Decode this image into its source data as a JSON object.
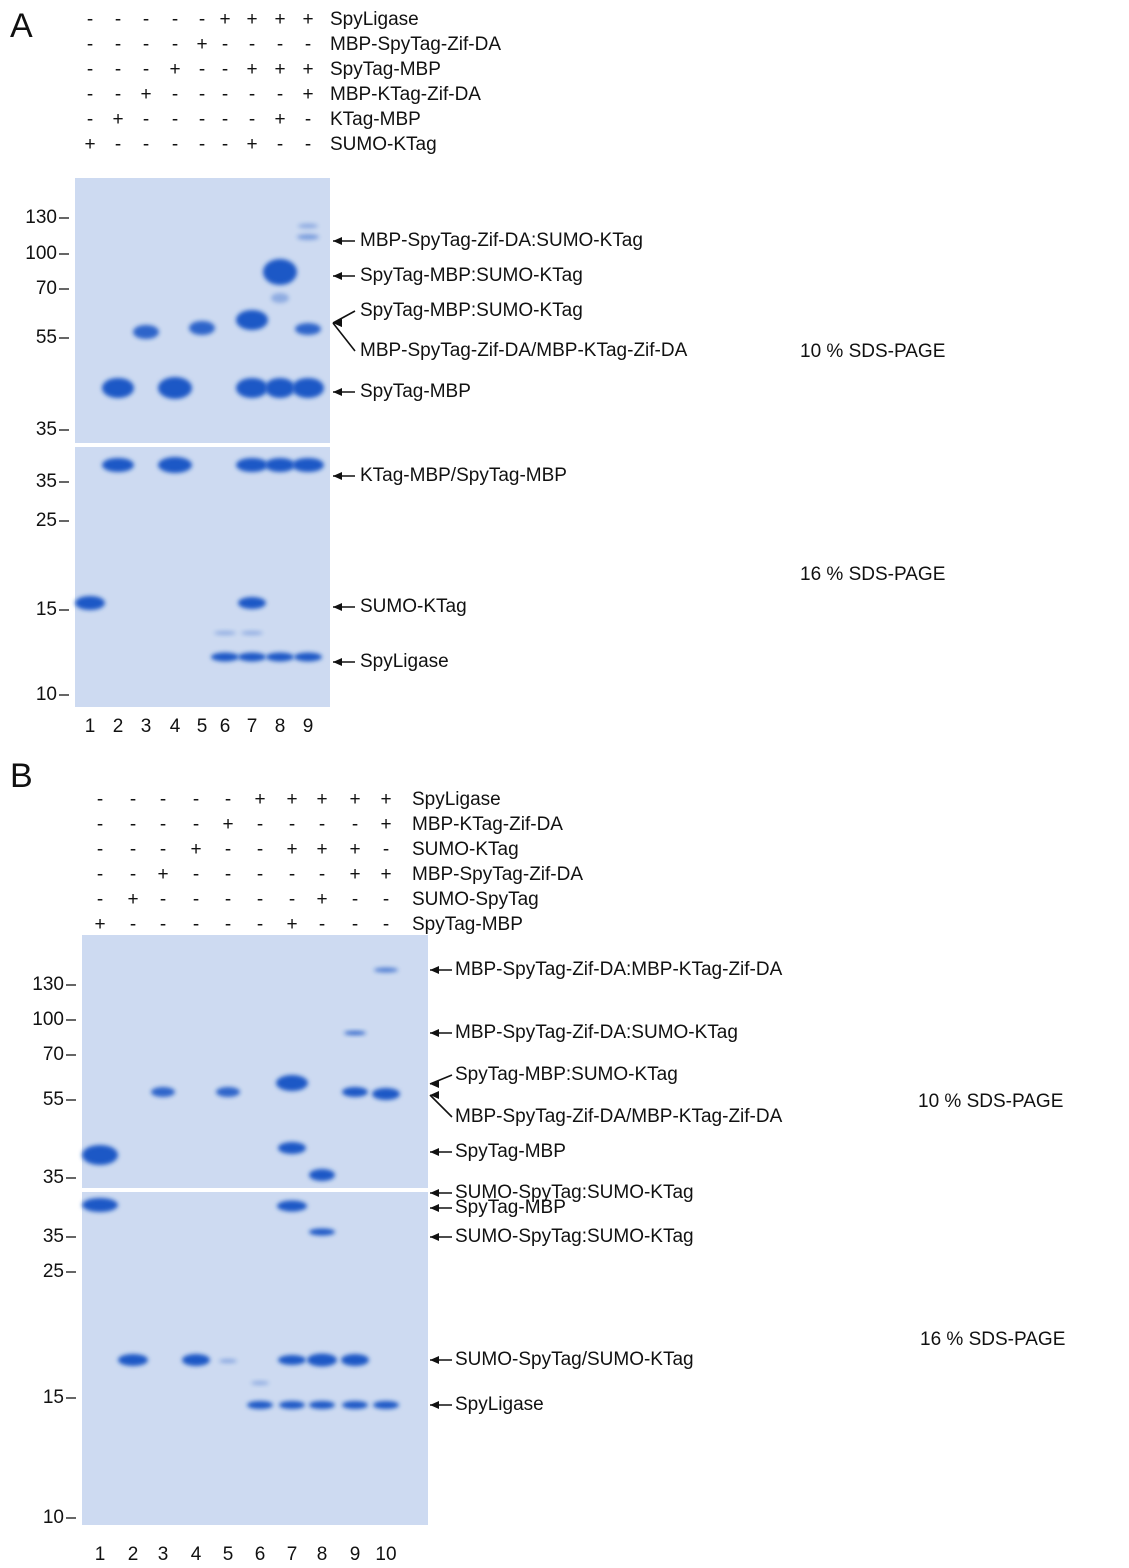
{
  "panels": [
    {
      "label": "A",
      "conditions": [
        {
          "name": "SpyLigase",
          "signs": [
            "-",
            "-",
            "-",
            "-",
            "-",
            "+",
            "+",
            "+",
            "+"
          ]
        },
        {
          "name": "MBP-SpyTag-Zif-DA",
          "signs": [
            "-",
            "-",
            "-",
            "-",
            "+",
            "-",
            "-",
            "-",
            "-"
          ]
        },
        {
          "name": "SpyTag-MBP",
          "signs": [
            "-",
            "-",
            "-",
            "+",
            "-",
            "-",
            "+",
            "+",
            "+"
          ]
        },
        {
          "name": "MBP-KTag-Zif-DA",
          "signs": [
            "-",
            "-",
            "+",
            "-",
            "-",
            "-",
            "-",
            "-",
            "+"
          ]
        },
        {
          "name": "KTag-MBP",
          "signs": [
            "-",
            "+",
            "-",
            "-",
            "-",
            "-",
            "-",
            "+",
            "-"
          ]
        },
        {
          "name": "SUMO-KTag",
          "signs": [
            "+",
            "-",
            "-",
            "-",
            "-",
            "-",
            "+",
            "-",
            "-"
          ]
        }
      ],
      "lanes": [
        1,
        2,
        3,
        4,
        5,
        6,
        7,
        8,
        9
      ],
      "markers": [
        130,
        100,
        70,
        55,
        35,
        35,
        25,
        15,
        10
      ],
      "annotations": [
        "MBP-SpyTag-Zif-DA:SUMO-KTag",
        "SpyTag-MBP:SUMO-KTag",
        "SpyTag-MBP:SUMO-KTag",
        "MBP-SpyTag-Zif-DA/MBP-KTag-Zif-DA",
        "SpyTag-MBP",
        "KTag-MBP/SpyTag-MBP",
        "SUMO-KTag",
        "SpyLigase"
      ],
      "gels": [
        "10 % SDS-PAGE",
        "16 % SDS-PAGE"
      ]
    },
    {
      "label": "B",
      "conditions": [
        {
          "name": "SpyLigase",
          "signs": [
            "-",
            "-",
            "-",
            "-",
            "-",
            "+",
            "+",
            "+",
            "+",
            "+"
          ]
        },
        {
          "name": "MBP-KTag-Zif-DA",
          "signs": [
            "-",
            "-",
            "-",
            "-",
            "+",
            "-",
            "-",
            "-",
            "-",
            "+"
          ]
        },
        {
          "name": "SUMO-KTag",
          "signs": [
            "-",
            "-",
            "-",
            "+",
            "-",
            "-",
            "+",
            "+",
            "+",
            "-"
          ]
        },
        {
          "name": "MBP-SpyTag-Zif-DA",
          "signs": [
            "-",
            "-",
            "+",
            "-",
            "-",
            "-",
            "-",
            "-",
            "+",
            "+"
          ]
        },
        {
          "name": "SUMO-SpyTag",
          "signs": [
            "-",
            "+",
            "-",
            "-",
            "-",
            "-",
            "-",
            "+",
            "-",
            "-"
          ]
        },
        {
          "name": "SpyTag-MBP",
          "signs": [
            "+",
            "-",
            "-",
            "-",
            "-",
            "-",
            "+",
            "-",
            "-",
            "-"
          ]
        }
      ],
      "lanes": [
        1,
        2,
        3,
        4,
        5,
        6,
        7,
        8,
        9,
        10
      ],
      "markers": [
        130,
        100,
        70,
        55,
        35,
        35,
        25,
        15,
        10
      ],
      "annotations": [
        "MBP-SpyTag-Zif-DA:MBP-KTag-Zif-DA",
        "MBP-SpyTag-Zif-DA:SUMO-KTag",
        "SpyTag-MBP:SUMO-KTag",
        "MBP-SpyTag-Zif-DA/MBP-KTag-Zif-DA",
        "SpyTag-MBP",
        "SUMO-SpyTag:SUMO-KTag",
        "SpyTag-MBP",
        "SUMO-SpyTag:SUMO-KTag",
        "SUMO-SpyTag/SUMO-KTag",
        "SpyLigase"
      ],
      "gels": [
        "10 % SDS-PAGE",
        "16 % SDS-PAGE"
      ]
    }
  ]
}
